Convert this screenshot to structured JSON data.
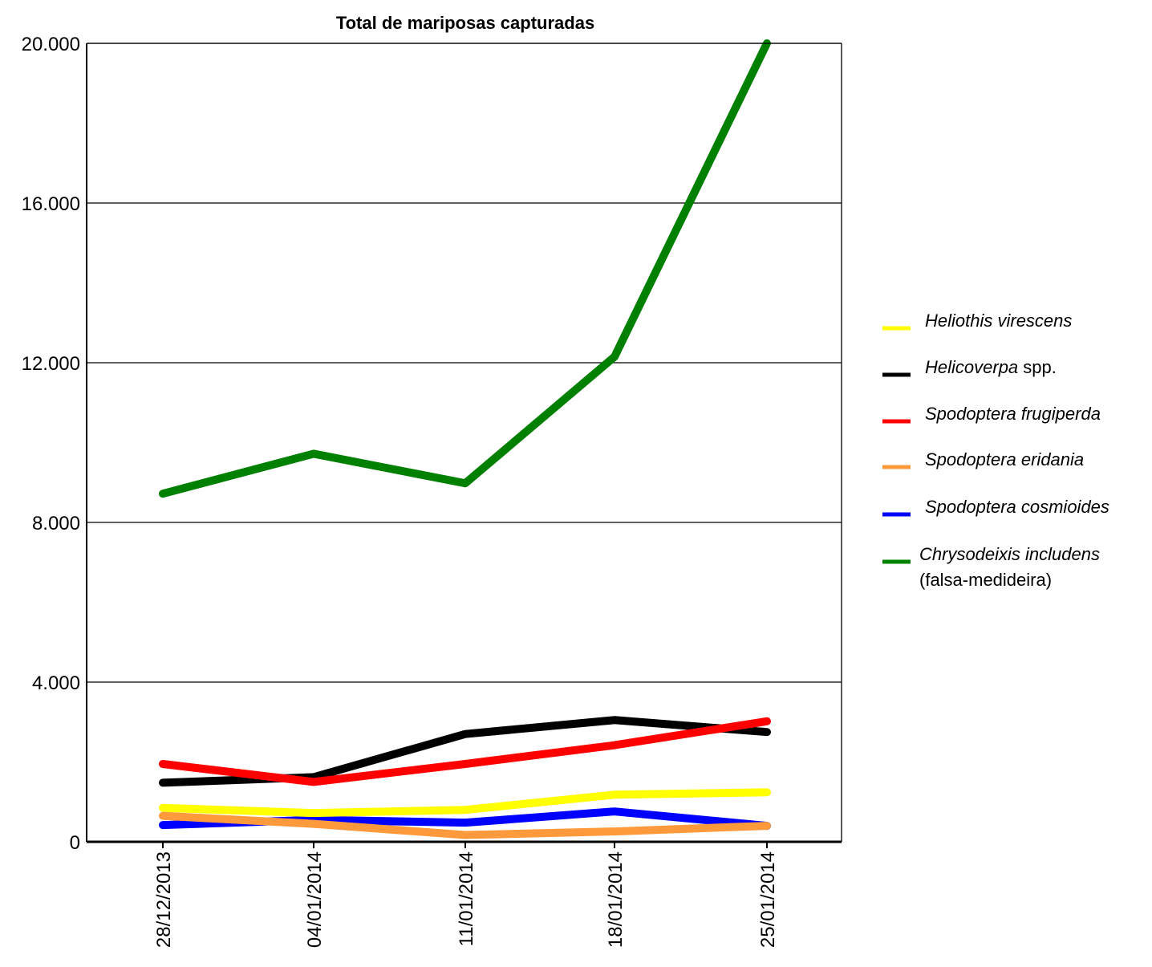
{
  "chart_data": {
    "type": "line",
    "title": "Total de mariposas capturadas",
    "xlabel": "",
    "ylabel": "",
    "categories": [
      "28/12/2013",
      "04/01/2014",
      "11/01/2014",
      "18/01/2014",
      "25/01/2014"
    ],
    "ylim": [
      0,
      20000
    ],
    "yticks": [
      0,
      4000,
      8000,
      12000,
      16000,
      20000
    ],
    "ytick_labels": [
      "0",
      "4.000",
      "8.000",
      "12.000",
      "16.000",
      "20.000"
    ],
    "grid": "horizontal",
    "legend_position": "right",
    "series": [
      {
        "name": "Heliothis virescens",
        "name_italic": "Heliothis virescens",
        "name_rest": "",
        "color": "#ffff00",
        "values": [
          850,
          720,
          800,
          1180,
          1240
        ]
      },
      {
        "name": "Helicoverpa spp.",
        "name_italic": "Helicoverpa",
        "name_rest": " spp.",
        "color": "#000000",
        "values": [
          1480,
          1620,
          2700,
          3050,
          2750
        ]
      },
      {
        "name": "Spodoptera frugiperda",
        "name_italic": "Spodoptera frugiperda",
        "name_rest": "",
        "color": "#ff0000",
        "values": [
          1950,
          1500,
          1950,
          2420,
          3020
        ]
      },
      {
        "name": "Spodoptera eridania",
        "name_italic": "Spodoptera eridania",
        "name_rest": "",
        "color": "#ff9a3c",
        "values": [
          650,
          450,
          170,
          260,
          400
        ]
      },
      {
        "name": "Spodoptera cosmioides",
        "name_italic": "Spodoptera cosmioides",
        "name_rest": "",
        "color": "#0000ff",
        "values": [
          420,
          550,
          480,
          760,
          400
        ]
      },
      {
        "name": "Chrysodeixis includens (falsa-medideira)",
        "name_italic": "Chrysodeixis includens",
        "name_rest": "",
        "name_line2": "(falsa-medideira)",
        "color": "#008000",
        "values": [
          8720,
          9720,
          8980,
          12150,
          20000
        ]
      }
    ],
    "series_draw_order": [
      4,
      0,
      3,
      1,
      2,
      5
    ]
  }
}
